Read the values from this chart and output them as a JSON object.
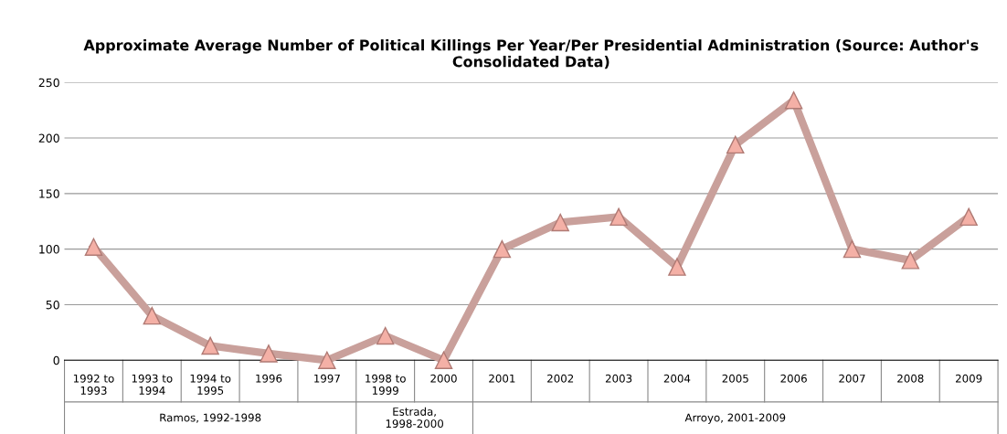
{
  "chart_data": {
    "type": "line",
    "title": "Approximate Average Number of Political Killings Per Year/Per Presidential Administration (Source: Author's Consolidated Data)",
    "categories": [
      "1992 to 1993",
      "1993 to 1994",
      "1994 to 1995",
      "1996",
      "1997",
      "1998 to 1999",
      "2000",
      "2001",
      "2002",
      "2003",
      "2004",
      "2005",
      "2006",
      "2007",
      "2008",
      "2009"
    ],
    "series": [
      {
        "color": "#c9a09b",
        "values": [
          102,
          40,
          13,
          6,
          0,
          22,
          0,
          100,
          124,
          129,
          84,
          194,
          234,
          100,
          90,
          129
        ]
      }
    ],
    "annotations": [
      "Ramos, 1992-1998",
      "Estrada, 1998-2000",
      "Arroyo, 2001-2009"
    ],
    "ylim": [
      0,
      250
    ],
    "yticks": [
      0,
      50,
      100,
      150,
      200,
      250
    ],
    "grid": "y",
    "marker": "triangle",
    "line_style": "solid",
    "legend": false
  }
}
